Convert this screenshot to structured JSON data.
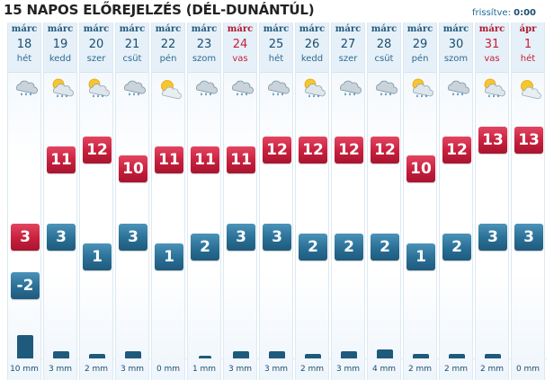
{
  "header": {
    "title": "15 NAPOS ELŐREJELZÉS (DÉL-DUNÁNTÚL)",
    "updated_label": "frissítve:",
    "updated_value": "0:00"
  },
  "colors": {
    "max_temp": "#c6203d",
    "min_temp": "#2a6f96",
    "holiday": "#c41e3a",
    "text_blue": "#1a4e70"
  },
  "temp_scale": {
    "min": -4,
    "max": 14
  },
  "rain_scale": {
    "max_mm": 10
  },
  "days": [
    {
      "month": "márc",
      "day": "18",
      "weekday": "hét",
      "holiday": false,
      "icon": "cloud-rain-icon",
      "max": "3",
      "min": "-2",
      "rain_mm": 10,
      "rain_label": "10 mm"
    },
    {
      "month": "márc",
      "day": "19",
      "weekday": "kedd",
      "holiday": false,
      "icon": "sun-cloud-rain-icon",
      "max": "11",
      "min": "3",
      "rain_mm": 3,
      "rain_label": "3 mm"
    },
    {
      "month": "márc",
      "day": "20",
      "weekday": "szer",
      "holiday": false,
      "icon": "sun-cloud-rain-icon",
      "max": "12",
      "min": "1",
      "rain_mm": 2,
      "rain_label": "2 mm"
    },
    {
      "month": "márc",
      "day": "21",
      "weekday": "csüt",
      "holiday": false,
      "icon": "cloud-rain-icon",
      "max": "10",
      "min": "3",
      "rain_mm": 3,
      "rain_label": "3 mm"
    },
    {
      "month": "márc",
      "day": "22",
      "weekday": "pén",
      "holiday": false,
      "icon": "sun-cloud-icon",
      "max": "11",
      "min": "1",
      "rain_mm": 0,
      "rain_label": "0 mm"
    },
    {
      "month": "márc",
      "day": "23",
      "weekday": "szom",
      "holiday": false,
      "icon": "cloud-rain-icon",
      "max": "11",
      "min": "2",
      "rain_mm": 1,
      "rain_label": "1 mm"
    },
    {
      "month": "márc",
      "day": "24",
      "weekday": "vas",
      "holiday": true,
      "icon": "cloud-rain-icon",
      "max": "11",
      "min": "3",
      "rain_mm": 3,
      "rain_label": "3 mm"
    },
    {
      "month": "márc",
      "day": "25",
      "weekday": "hét",
      "holiday": false,
      "icon": "cloud-rain-icon",
      "max": "12",
      "min": "3",
      "rain_mm": 3,
      "rain_label": "3 mm"
    },
    {
      "month": "márc",
      "day": "26",
      "weekday": "kedd",
      "holiday": false,
      "icon": "sun-cloud-rain-icon",
      "max": "12",
      "min": "2",
      "rain_mm": 2,
      "rain_label": "2 mm"
    },
    {
      "month": "márc",
      "day": "27",
      "weekday": "szer",
      "holiday": false,
      "icon": "cloud-rain-icon",
      "max": "12",
      "min": "2",
      "rain_mm": 3,
      "rain_label": "3 mm"
    },
    {
      "month": "márc",
      "day": "28",
      "weekday": "csüt",
      "holiday": false,
      "icon": "cloud-rain-icon",
      "max": "12",
      "min": "2",
      "rain_mm": 4,
      "rain_label": "4 mm"
    },
    {
      "month": "márc",
      "day": "29",
      "weekday": "pén",
      "holiday": false,
      "icon": "sun-cloud-rain-icon",
      "max": "10",
      "min": "1",
      "rain_mm": 2,
      "rain_label": "2 mm"
    },
    {
      "month": "márc",
      "day": "30",
      "weekday": "szom",
      "holiday": false,
      "icon": "cloud-rain-icon",
      "max": "12",
      "min": "2",
      "rain_mm": 2,
      "rain_label": "2 mm"
    },
    {
      "month": "márc",
      "day": "31",
      "weekday": "vas",
      "holiday": true,
      "icon": "sun-cloud-rain-icon",
      "max": "13",
      "min": "3",
      "rain_mm": 2,
      "rain_label": "2 mm"
    },
    {
      "month": "ápr",
      "day": "1",
      "weekday": "hét",
      "holiday": true,
      "icon": "sun-cloud-icon",
      "max": "13",
      "min": "3",
      "rain_mm": 0,
      "rain_label": "0 mm"
    }
  ]
}
